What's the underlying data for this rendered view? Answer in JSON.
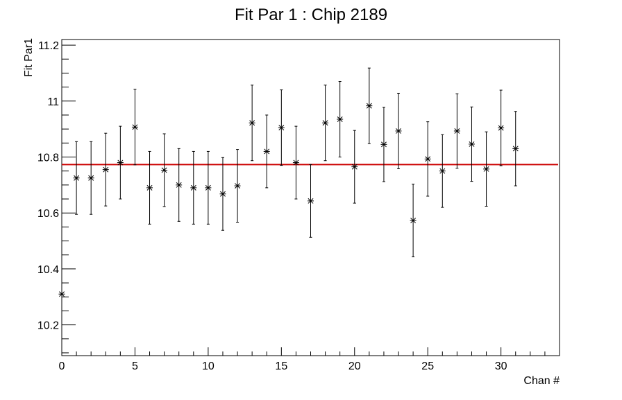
{
  "chart_data": {
    "type": "scatter",
    "title": "Fit Par 1 : Chip 2189",
    "xlabel": "Chan #",
    "ylabel": "Fit Par1",
    "xlim": [
      0,
      34
    ],
    "ylim": [
      10.09,
      11.22
    ],
    "x_ticks": [
      0,
      5,
      10,
      15,
      20,
      25,
      30
    ],
    "y_ticks": [
      10.2,
      10.4,
      10.6,
      10.8,
      11
    ],
    "x_tick_labels": [
      "0",
      "5",
      "10",
      "15",
      "20",
      "25",
      "30"
    ],
    "y_tick_labels": [
      "10.2",
      "10.4",
      "10.6",
      "10.8",
      "11",
      "11.2"
    ],
    "y_tick_values_all": [
      10.2,
      10.4,
      10.6,
      10.8,
      11,
      11.2
    ],
    "x_minor_step": 1,
    "y_minor_step": 0.05,
    "marker": "asterisk",
    "grid": false,
    "points": [
      {
        "x": 0,
        "y": 10.31,
        "err": 0.0
      },
      {
        "x": 1,
        "y": 10.725,
        "err": 0.13
      },
      {
        "x": 2,
        "y": 10.725,
        "err": 0.13
      },
      {
        "x": 3,
        "y": 10.755,
        "err": 0.13
      },
      {
        "x": 4,
        "y": 10.78,
        "err": 0.13
      },
      {
        "x": 5,
        "y": 10.907,
        "err": 0.135
      },
      {
        "x": 6,
        "y": 10.69,
        "err": 0.13
      },
      {
        "x": 7,
        "y": 10.753,
        "err": 0.13
      },
      {
        "x": 8,
        "y": 10.7,
        "err": 0.13
      },
      {
        "x": 9,
        "y": 10.69,
        "err": 0.13
      },
      {
        "x": 10,
        "y": 10.69,
        "err": 0.13
      },
      {
        "x": 11,
        "y": 10.668,
        "err": 0.13
      },
      {
        "x": 12,
        "y": 10.697,
        "err": 0.13
      },
      {
        "x": 13,
        "y": 10.922,
        "err": 0.135
      },
      {
        "x": 14,
        "y": 10.82,
        "err": 0.13
      },
      {
        "x": 15,
        "y": 10.905,
        "err": 0.135
      },
      {
        "x": 16,
        "y": 10.78,
        "err": 0.13
      },
      {
        "x": 17,
        "y": 10.643,
        "err": 0.13
      },
      {
        "x": 18,
        "y": 10.922,
        "err": 0.135
      },
      {
        "x": 19,
        "y": 10.935,
        "err": 0.135
      },
      {
        "x": 20,
        "y": 10.765,
        "err": 0.13
      },
      {
        "x": 21,
        "y": 10.983,
        "err": 0.135
      },
      {
        "x": 22,
        "y": 10.845,
        "err": 0.133
      },
      {
        "x": 23,
        "y": 10.893,
        "err": 0.135
      },
      {
        "x": 24,
        "y": 10.573,
        "err": 0.13
      },
      {
        "x": 25,
        "y": 10.793,
        "err": 0.133
      },
      {
        "x": 26,
        "y": 10.75,
        "err": 0.13
      },
      {
        "x": 27,
        "y": 10.893,
        "err": 0.133
      },
      {
        "x": 28,
        "y": 10.846,
        "err": 0.133
      },
      {
        "x": 29,
        "y": 10.757,
        "err": 0.133
      },
      {
        "x": 30,
        "y": 10.904,
        "err": 0.135
      },
      {
        "x": 31,
        "y": 10.83,
        "err": 0.133
      }
    ],
    "fit_line": {
      "y": 10.773,
      "color": "#cc0000"
    },
    "colors": {
      "markers": "#000000",
      "axes": "#000000",
      "fit": "#cc0000"
    }
  }
}
